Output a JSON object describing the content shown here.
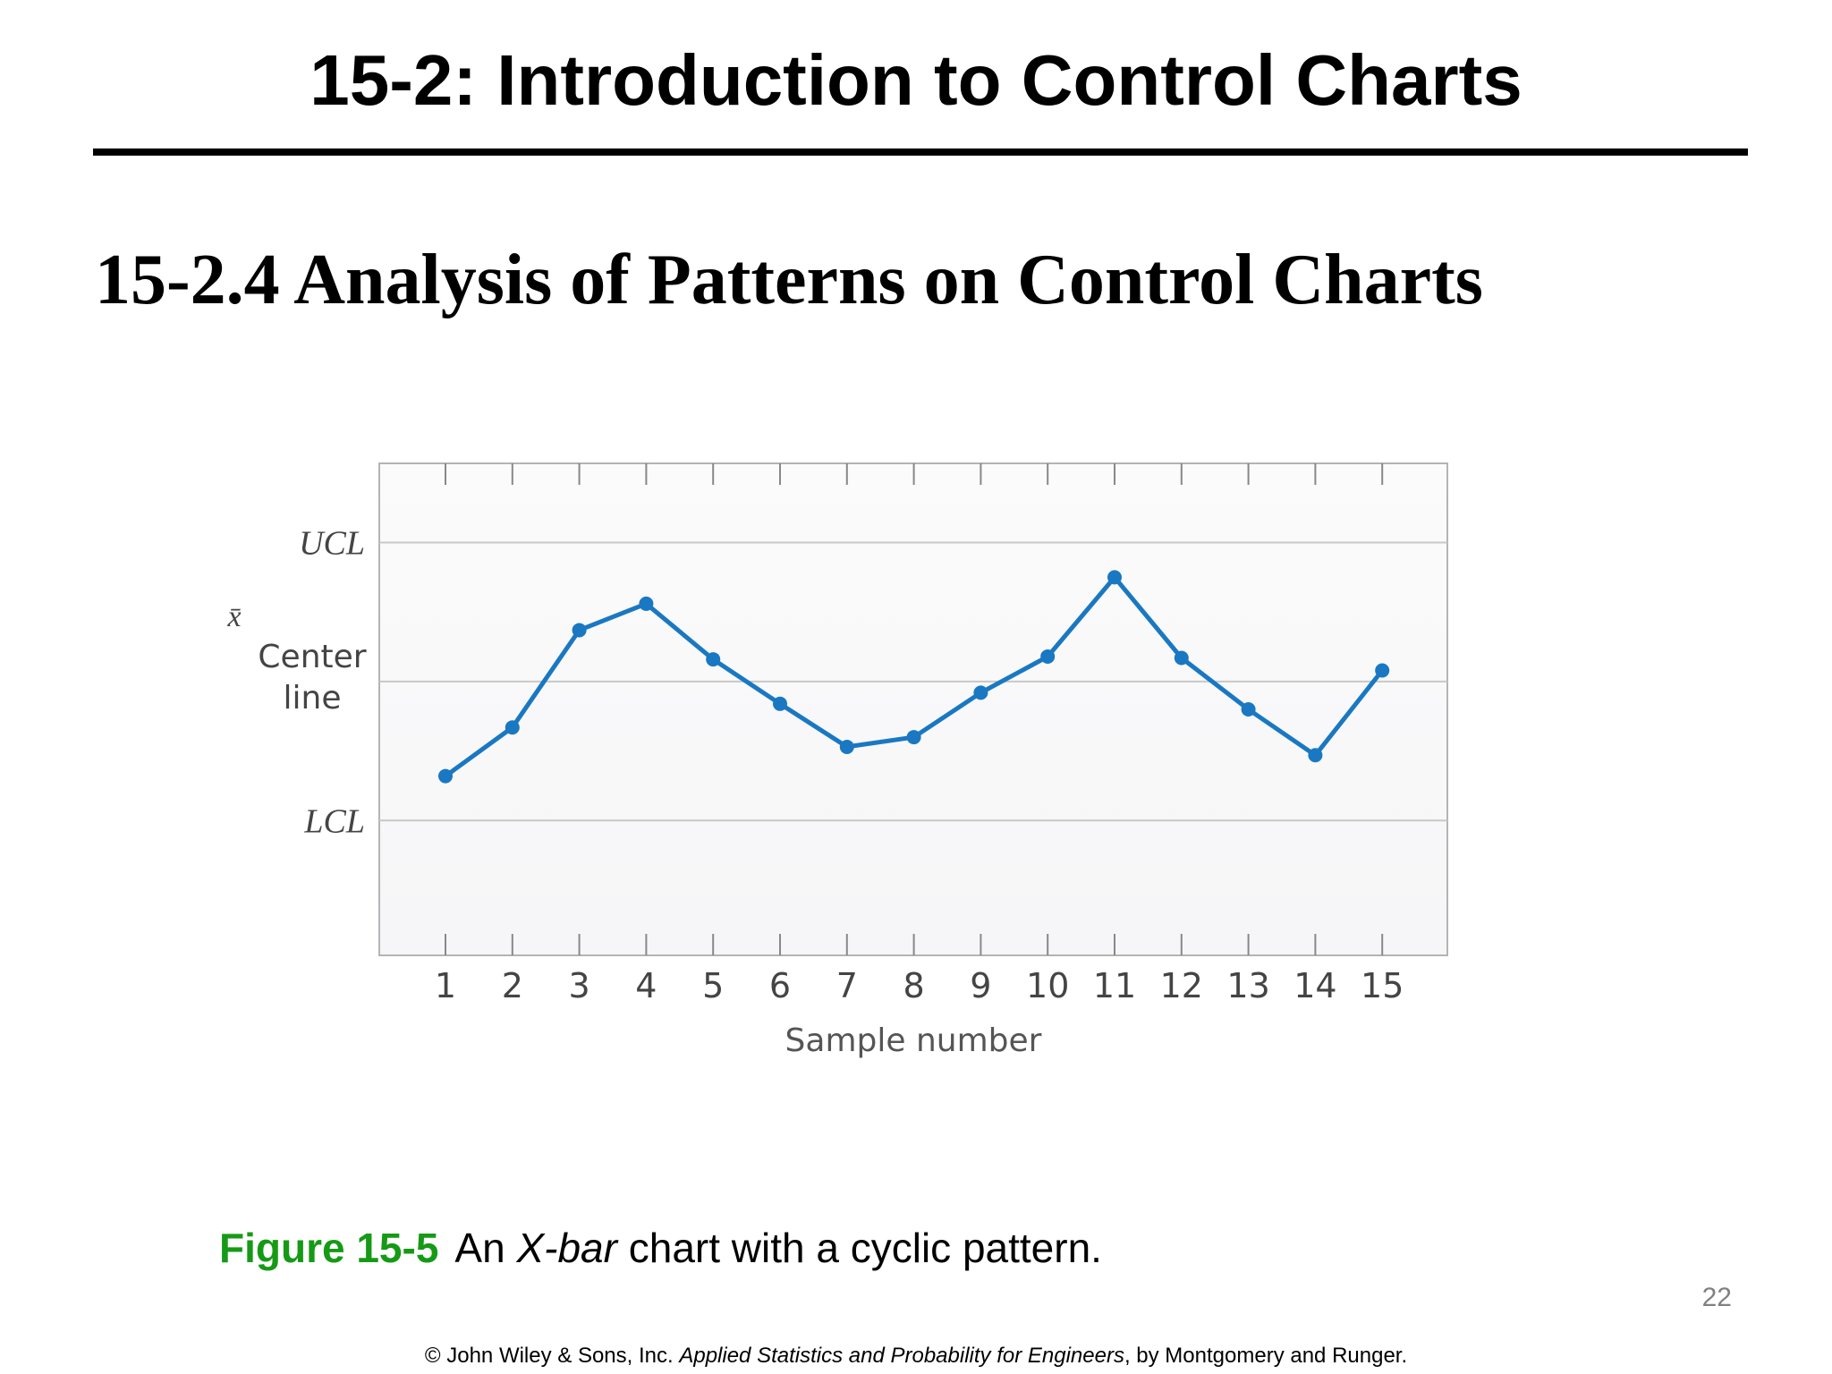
{
  "slide": {
    "title": "15-2: Introduction to Control Charts",
    "heading": "15-2.4 Analysis of Patterns on Control Charts",
    "page_number": "22"
  },
  "caption": {
    "figure_label": "Figure 15-5",
    "text_before": "An",
    "text_italic": "X-bar",
    "text_after": "chart with a cyclic pattern."
  },
  "footer": {
    "prefix": "© John Wiley & Sons, Inc.",
    "book": "Applied Statistics and Probability for Engineers",
    "suffix": ", by Montgomery and Runger."
  },
  "colors": {
    "series": "#1a78c2",
    "grid": "#c8c8c8",
    "caption_label": "#169a16"
  },
  "chart_data": {
    "type": "line",
    "title": "",
    "xlabel": "Sample number",
    "ylabel": "x̄",
    "x": [
      1,
      2,
      3,
      4,
      5,
      6,
      7,
      8,
      9,
      10,
      11,
      12,
      13,
      14,
      15
    ],
    "series": [
      {
        "values": [
          -0.68,
          -0.33,
          0.37,
          0.56,
          0.16,
          -0.16,
          -0.47,
          -0.4,
          -0.08,
          0.18,
          0.75,
          0.17,
          -0.2,
          -0.53,
          0.08
        ]
      }
    ],
    "control_lines": [
      {
        "label": "UCL",
        "value": 1.0
      },
      {
        "label": "Center\nline",
        "value": 0.0
      },
      {
        "label": "LCL",
        "value": -1.0
      }
    ],
    "ylim": [
      -1.97,
      1.57
    ],
    "xlim": [
      0,
      16
    ],
    "grid": false,
    "legend": "none"
  }
}
